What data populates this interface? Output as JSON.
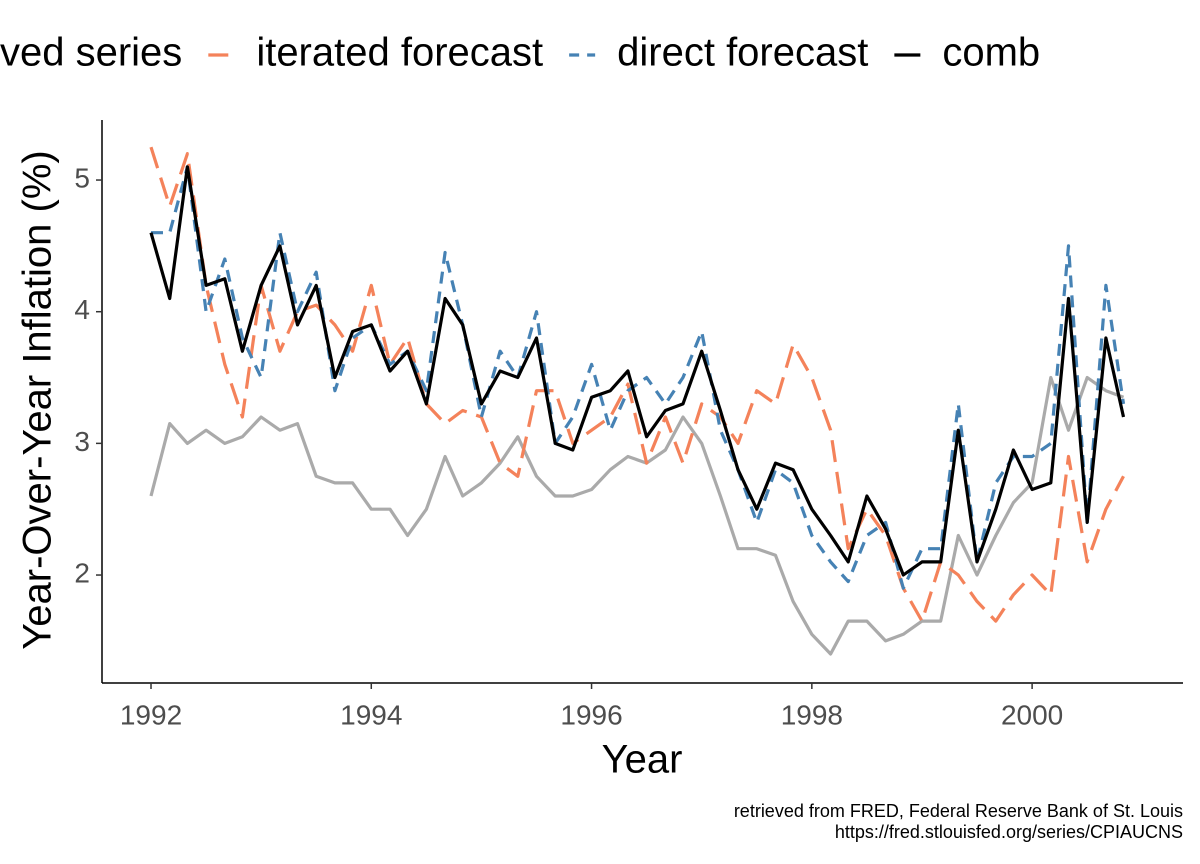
{
  "chart_data": {
    "type": "line",
    "x_label": "Year",
    "y_label": "Year-Over-Year Inflation (%)",
    "caption": [
      "retrieved from FRED, Federal Reserve Bank of St. Louis",
      "https://fred.stlouisfed.org/series/CPIAUCNS"
    ],
    "x": [
      1992,
      1992.17,
      1992.33,
      1992.5,
      1992.67,
      1992.83,
      1993,
      1993.17,
      1993.33,
      1993.5,
      1993.67,
      1993.83,
      1994,
      1994.17,
      1994.33,
      1994.5,
      1994.67,
      1994.83,
      1995,
      1995.17,
      1995.33,
      1995.5,
      1995.67,
      1995.83,
      1996,
      1996.17,
      1996.33,
      1996.5,
      1996.67,
      1996.83,
      1997,
      1997.17,
      1997.33,
      1997.5,
      1997.67,
      1997.83,
      1998,
      1998.17,
      1998.33,
      1998.5,
      1998.67,
      1998.83,
      1999,
      1999.17,
      1999.33,
      1999.5,
      1999.67,
      1999.83,
      2000,
      2000.17,
      2000.33,
      2000.5,
      2000.67,
      2000.83
    ],
    "series": [
      {
        "name": "ved series",
        "color": "#aaaaaa",
        "linetype": "solid",
        "values": [
          2.6,
          3.15,
          3.0,
          3.1,
          3.0,
          3.05,
          3.2,
          3.1,
          3.15,
          2.75,
          2.7,
          2.7,
          2.5,
          2.5,
          2.3,
          2.5,
          2.9,
          2.6,
          2.7,
          2.85,
          3.05,
          2.75,
          2.6,
          2.6,
          2.65,
          2.8,
          2.9,
          2.85,
          2.95,
          3.2,
          3.0,
          2.6,
          2.2,
          2.2,
          2.15,
          1.8,
          1.55,
          1.4,
          1.65,
          1.65,
          1.5,
          1.55,
          1.65,
          1.65,
          2.3,
          2.0,
          2.3,
          2.55,
          2.7,
          3.5,
          3.1,
          3.5,
          3.4,
          3.35
        ]
      },
      {
        "name": "iterated forecast",
        "color": "#f4825a",
        "linetype": "longdash",
        "values": [
          5.25,
          4.8,
          5.2,
          4.2,
          3.6,
          3.2,
          4.2,
          3.7,
          4.0,
          4.05,
          3.9,
          3.7,
          4.2,
          3.6,
          3.8,
          3.3,
          3.15,
          3.25,
          3.2,
          2.85,
          2.75,
          3.4,
          3.4,
          3.0,
          3.1,
          3.2,
          3.45,
          2.85,
          3.2,
          2.85,
          3.3,
          3.2,
          3.0,
          3.4,
          3.3,
          3.75,
          3.5,
          3.1,
          2.2,
          2.5,
          2.3,
          1.9,
          1.65,
          2.1,
          2.0,
          1.8,
          1.65,
          1.85,
          2.0,
          1.85,
          2.9,
          2.1,
          2.5,
          2.75
        ]
      },
      {
        "name": "direct forecast",
        "color": "#4682b4",
        "linetype": "dashed",
        "values": [
          4.6,
          4.6,
          5.1,
          4.0,
          4.4,
          3.8,
          3.5,
          4.6,
          4.0,
          4.3,
          3.4,
          3.8,
          3.9,
          3.6,
          3.7,
          3.4,
          4.45,
          3.9,
          3.2,
          3.7,
          3.5,
          4.0,
          3.0,
          3.2,
          3.6,
          3.1,
          3.4,
          3.5,
          3.3,
          3.5,
          3.85,
          3.1,
          2.8,
          2.4,
          2.8,
          2.7,
          2.3,
          2.1,
          1.95,
          2.3,
          2.4,
          1.9,
          2.2,
          2.2,
          3.3,
          2.1,
          2.7,
          2.9,
          2.9,
          3.0,
          4.5,
          2.4,
          4.2,
          3.3
        ]
      },
      {
        "name": "comb",
        "color": "#000000",
        "linetype": "solid",
        "values": [
          4.6,
          4.1,
          5.1,
          4.2,
          4.25,
          3.7,
          4.2,
          4.5,
          3.9,
          4.2,
          3.5,
          3.85,
          3.9,
          3.55,
          3.7,
          3.3,
          4.1,
          3.9,
          3.3,
          3.55,
          3.5,
          3.8,
          3.0,
          2.95,
          3.35,
          3.4,
          3.55,
          3.05,
          3.25,
          3.3,
          3.7,
          3.25,
          2.8,
          2.5,
          2.85,
          2.8,
          2.5,
          2.3,
          2.1,
          2.6,
          2.35,
          2.0,
          2.1,
          2.1,
          3.1,
          2.1,
          2.5,
          2.95,
          2.65,
          2.7,
          4.1,
          2.4,
          3.8,
          3.2
        ]
      }
    ],
    "xlim": [
      1991.555,
      2001.37
    ],
    "xticks": [
      1992,
      1994,
      1996,
      1998,
      2000
    ],
    "ylim": [
      1.18,
      5.456
    ],
    "yticks": [
      2,
      3,
      4,
      5
    ],
    "legend": "top",
    "grid": false
  }
}
